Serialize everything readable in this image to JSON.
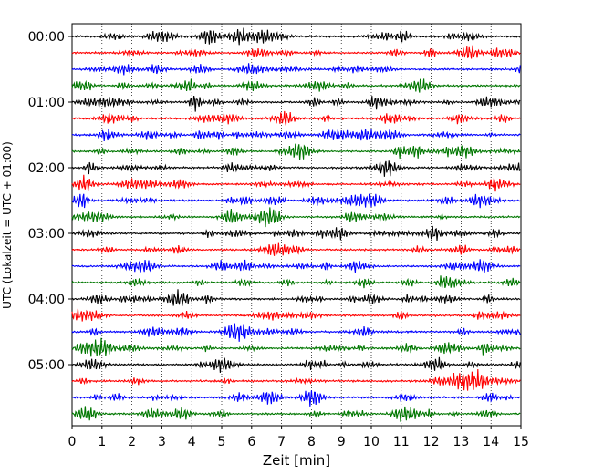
{
  "chart_data": {
    "type": "line",
    "title": "",
    "xlabel": "Zeit  [min]",
    "ylabel": "UTC (Lokalzeit = UTC + 01:00)",
    "xlim": [
      0,
      15
    ],
    "x_ticks": [
      "0",
      "1",
      "2",
      "3",
      "4",
      "5",
      "6",
      "7",
      "8",
      "9",
      "10",
      "11",
      "12",
      "13",
      "14",
      "15"
    ],
    "y_ticks": [
      "00:00",
      "01:00",
      "02:00",
      "03:00",
      "04:00",
      "05:00"
    ],
    "grid": "vertical dotted at each minute",
    "trace_interval_minutes": 15,
    "trace_count": 24,
    "trace_colors": [
      "#000000",
      "#ff0000",
      "#0000ff",
      "#007700"
    ],
    "series_description": "Seismogram (helicorder) traces, one per 15-minute window from 00:00 to 05:45 UTC"
  }
}
